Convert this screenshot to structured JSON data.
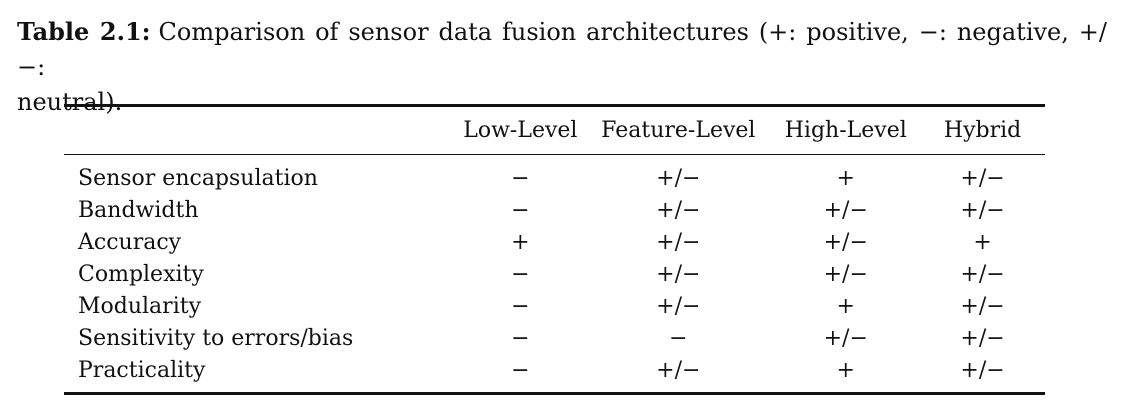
{
  "caption": {
    "label": "Table 2.1:",
    "text_line1": "Comparison of sensor data fusion architectures (+: positive, −: negative, +/−:",
    "text_line2": "neutral)."
  },
  "table": {
    "columns": [
      "",
      "Low-Level",
      "Feature-Level",
      "High-Level",
      "Hybrid"
    ],
    "rows": [
      {
        "label": "Sensor encapsulation",
        "cells": [
          "−",
          "+/−",
          "+",
          "+/−"
        ]
      },
      {
        "label": "Bandwidth",
        "cells": [
          "−",
          "+/−",
          "+/−",
          "+/−"
        ]
      },
      {
        "label": "Accuracy",
        "cells": [
          "+",
          "+/−",
          "+/−",
          "+"
        ]
      },
      {
        "label": "Complexity",
        "cells": [
          "−",
          "+/−",
          "+/−",
          "+/−"
        ]
      },
      {
        "label": "Modularity",
        "cells": [
          "−",
          "+/−",
          "+",
          "+/−"
        ]
      },
      {
        "label": "Sensitivity to errors/bias",
        "cells": [
          "−",
          "−",
          "+/−",
          "+/−"
        ]
      },
      {
        "label": "Practicality",
        "cells": [
          "−",
          "+/−",
          "+",
          "+/−"
        ]
      }
    ]
  }
}
